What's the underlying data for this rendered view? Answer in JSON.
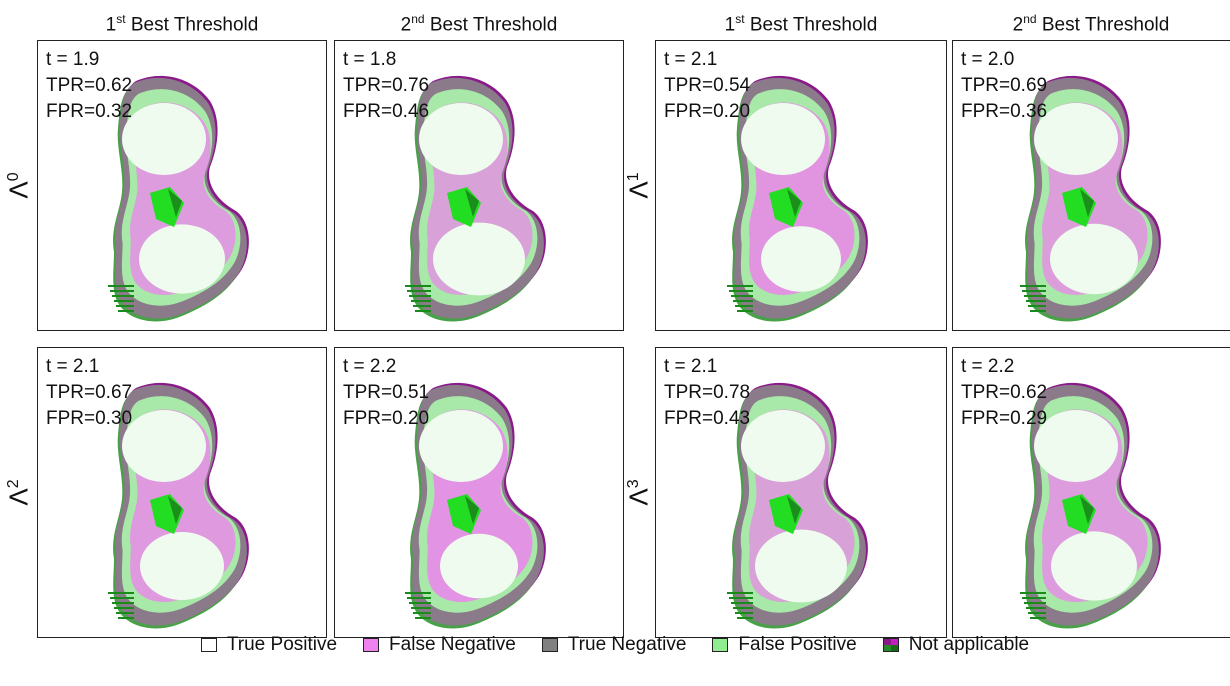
{
  "column_titles": [
    {
      "ord": "1",
      "sup": "st",
      "rest": " Best Threshold"
    },
    {
      "ord": "2",
      "sup": "nd",
      "rest": " Best Threshold"
    },
    {
      "ord": "1",
      "sup": "st",
      "rest": " Best Threshold"
    },
    {
      "ord": "2",
      "sup": "nd",
      "rest": " Best Threshold"
    }
  ],
  "row_labels": [
    {
      "base": "Λ",
      "sup": "0"
    },
    {
      "base": "Λ",
      "sup": "1"
    },
    {
      "base": "Λ",
      "sup": "2"
    },
    {
      "base": "Λ",
      "sup": "3"
    }
  ],
  "panels": [
    {
      "t": "t = 1.9",
      "tpr": "TPR=0.62",
      "fpr": "FPR=0.32",
      "fn_level": 0.45
    },
    {
      "t": "t = 1.8",
      "tpr": "TPR=0.76",
      "fpr": "FPR=0.46",
      "fn_level": 0.3
    },
    {
      "t": "t = 2.1",
      "tpr": "TPR=0.54",
      "fpr": "FPR=0.20",
      "fn_level": 0.6
    },
    {
      "t": "t = 2.0",
      "tpr": "TPR=0.69",
      "fpr": "FPR=0.36",
      "fn_level": 0.4
    },
    {
      "t": "t = 2.1",
      "tpr": "TPR=0.67",
      "fpr": "FPR=0.30",
      "fn_level": 0.5
    },
    {
      "t": "t = 2.2",
      "tpr": "TPR=0.51",
      "fpr": "FPR=0.20",
      "fn_level": 0.65
    },
    {
      "t": "t = 2.1",
      "tpr": "TPR=0.78",
      "fpr": "FPR=0.43",
      "fn_level": 0.3
    },
    {
      "t": "t = 2.2",
      "tpr": "TPR=0.62",
      "fpr": "FPR=0.29",
      "fn_level": 0.45
    }
  ],
  "legend": [
    {
      "label": "True Positive",
      "color": "#ffffff"
    },
    {
      "label": "False Negative",
      "color": "#ee82ee"
    },
    {
      "label": "True Negative",
      "color": "#808080"
    },
    {
      "label": "False Positive",
      "color": "#90ee90"
    },
    {
      "label": "Not applicable",
      "color": "split"
    }
  ],
  "colors": {
    "true_positive": "#f0fbf0",
    "false_negative": "#ee82ee",
    "true_negative": "#8a7a8a",
    "false_positive": "#a8e8a8",
    "not_applicable_purple": "#8a1a8a",
    "not_applicable_green": "#1a8a1a",
    "core_green": "#22dd22"
  }
}
